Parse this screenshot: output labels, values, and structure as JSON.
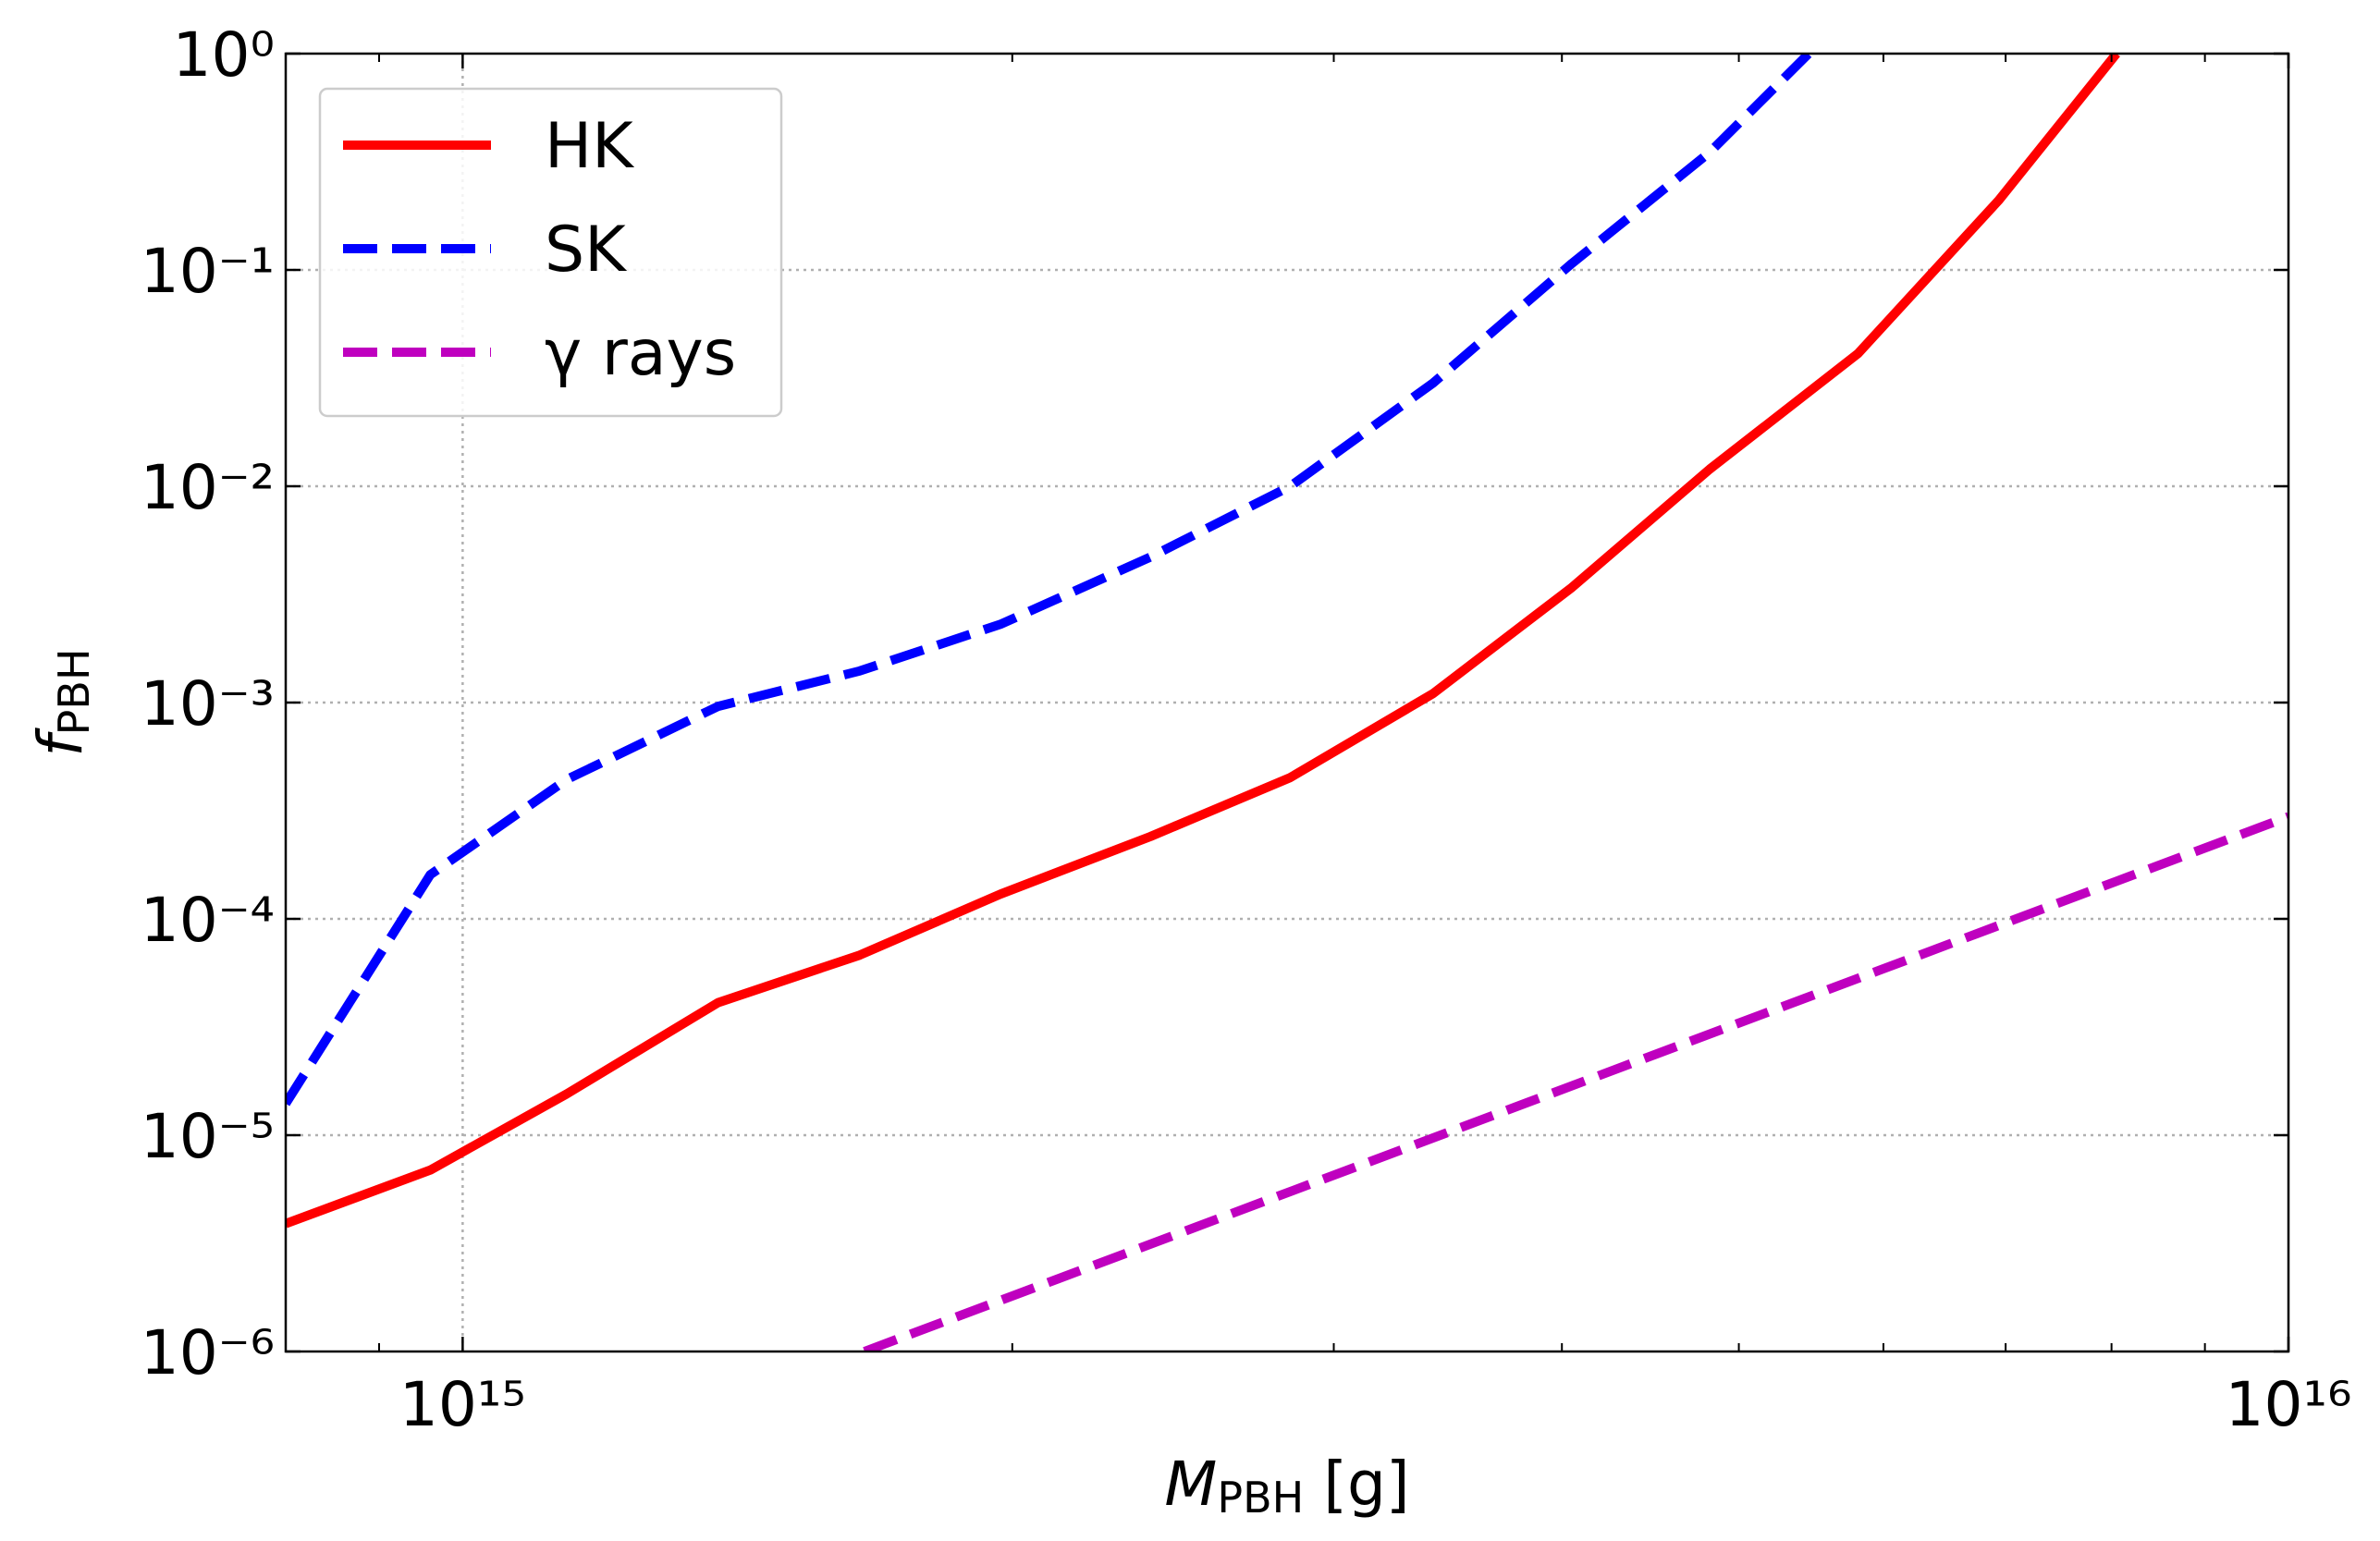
{
  "chart_data": {
    "type": "line",
    "xlabel": {
      "main": "M",
      "sub": "PBH",
      "rest": " [g]"
    },
    "ylabel": {
      "main": "f",
      "sub": "PBH"
    },
    "xscale": "log",
    "yscale": "log",
    "grid": true,
    "legend": "upper left",
    "xlim": [
      800000000000000.0,
      1e+16
    ],
    "ylim": [
      1e-06,
      1.0
    ],
    "xticks": [
      {
        "value": 1000000000000000.0,
        "label": "10¹⁵"
      },
      {
        "value": 1e+16,
        "label": "10¹⁶"
      }
    ],
    "xminorticks": [
      900000000000000.0,
      2000000000000000.0,
      3000000000000000.0,
      4000000000000000.0,
      5000000000000000.0,
      6000000000000000.0,
      7000000000000000.0,
      8000000000000000.0,
      9000000000000000.0
    ],
    "yticks": [
      {
        "value": 1e-06,
        "label": "10⁻⁶"
      },
      {
        "value": 1e-05,
        "label": "10⁻⁵"
      },
      {
        "value": 0.0001,
        "label": "10⁻⁴"
      },
      {
        "value": 0.001,
        "label": "10⁻³"
      },
      {
        "value": 0.01,
        "label": "10⁻²"
      },
      {
        "value": 0.1,
        "label": "10⁻¹"
      },
      {
        "value": 1.0,
        "label": "10⁰"
      }
    ],
    "series": [
      {
        "name": "HK",
        "color": "#ff0000",
        "style": "solid",
        "x": [
          800000000000000.0,
          960000000000000.0,
          1140000000000000.0,
          1380000000000000.0,
          1650000000000000.0,
          1970000000000000.0,
          2380000000000000.0,
          2840000000000000.0,
          3400000000000000.0,
          4050000000000000.0,
          4820000000000000.0,
          5810000000000000.0,
          6940000000000000.0,
          8050000000000000.0
        ],
        "values": [
          3.9e-06,
          6.9e-06,
          1.55e-05,
          4.1e-05,
          6.8e-05,
          0.00013,
          0.00024,
          0.00045,
          0.0011,
          0.0034,
          0.012,
          0.041,
          0.21,
          1.0
        ]
      },
      {
        "name": "SK",
        "color": "#0000ff",
        "style": "dashed",
        "x": [
          800000000000000.0,
          960000000000000.0,
          1140000000000000.0,
          1380000000000000.0,
          1650000000000000.0,
          1970000000000000.0,
          2380000000000000.0,
          2840000000000000.0,
          3400000000000000.0,
          4050000000000000.0,
          4820000000000000.0,
          5460000000000000.0
        ],
        "values": [
          1.4e-05,
          0.00016,
          0.00044,
          0.00096,
          0.0014,
          0.0023,
          0.0047,
          0.01,
          0.03,
          0.107,
          0.35,
          1.0
        ]
      },
      {
        "name": "γ rays",
        "color": "#bf00bf",
        "style": "dashed",
        "x": [
          1660000000000000.0,
          1e+16
        ],
        "values": [
          1e-06,
          0.000297
        ]
      }
    ]
  }
}
